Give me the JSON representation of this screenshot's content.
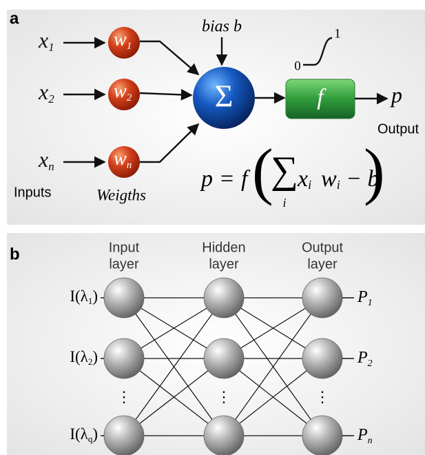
{
  "panel_a": {
    "label": "a",
    "inputs": [
      {
        "var": "x",
        "sub": "1"
      },
      {
        "var": "x",
        "sub": "2"
      },
      {
        "var": "x",
        "sub": "n"
      }
    ],
    "weights": [
      {
        "var": "w",
        "sub": "1"
      },
      {
        "var": "w",
        "sub": "2"
      },
      {
        "var": "w",
        "sub": "n"
      }
    ],
    "bias": "bias b",
    "sum": "Σ",
    "activation": "f",
    "output_var": "p",
    "output_label": "Output",
    "sigmoid": {
      "low": "0",
      "high": "1"
    },
    "inputs_label": "Inputs",
    "weights_label": "Weigths",
    "formula": {
      "lhs": "p",
      "eq": "=",
      "func": "f",
      "open": "(",
      "sum": "∑",
      "index": "i",
      "x": "x",
      "xsub": "i",
      "w": "w",
      "wsub": "i",
      "rest": "− b",
      "close": ")"
    }
  },
  "panel_b": {
    "label": "b",
    "layers": [
      {
        "title": [
          "Input",
          "layer"
        ]
      },
      {
        "title": [
          "Hidden",
          "layer"
        ]
      },
      {
        "title": [
          "Output",
          "layer"
        ]
      }
    ],
    "inputs": [
      {
        "pre": "I(λ",
        "sub": "1",
        "post": ")"
      },
      {
        "pre": "I(λ",
        "sub": "2",
        "post": ")"
      },
      {
        "pre": "I(λ",
        "sub": "q",
        "post": ")"
      }
    ],
    "dots": "⋮",
    "outputs": [
      {
        "var": "P",
        "sub": "1"
      },
      {
        "var": "P",
        "sub": "2"
      },
      {
        "var": "P",
        "sub": "n"
      }
    ]
  }
}
